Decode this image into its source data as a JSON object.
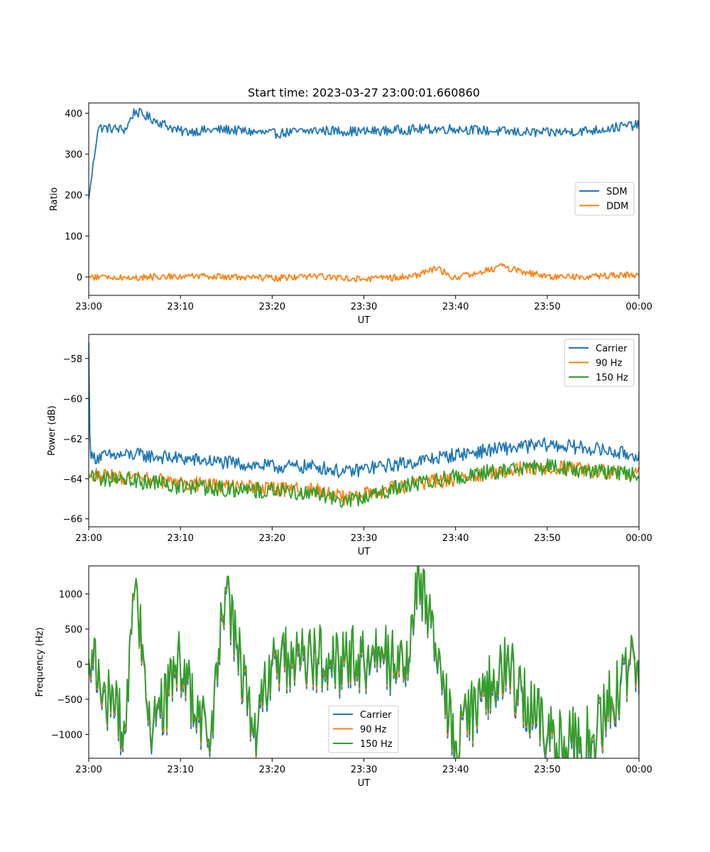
{
  "chart_data": [
    {
      "type": "line",
      "title": "Start time: 2023-03-27 23:00:01.660860",
      "xlabel": "UT",
      "ylabel": "Ratio",
      "xlim": [
        "23:00",
        "00:00"
      ],
      "ylim": [
        -45,
        425
      ],
      "xticks": [
        "23:00",
        "23:10",
        "23:20",
        "23:30",
        "23:40",
        "23:50",
        "00:00"
      ],
      "yticks": [
        0,
        100,
        200,
        300,
        400
      ],
      "legend_position": "center-right",
      "series": [
        {
          "name": "SDM",
          "color": "#1f77b4",
          "x": [
            "23:00",
            "23:01",
            "23:04",
            "23:05",
            "23:10",
            "23:15",
            "23:20",
            "23:25",
            "23:30",
            "23:35",
            "23:40",
            "23:45",
            "23:50",
            "23:55",
            "23:59"
          ],
          "values": [
            190,
            365,
            360,
            405,
            355,
            360,
            350,
            358,
            355,
            360,
            362,
            355,
            352,
            358,
            370
          ]
        },
        {
          "name": "DDM",
          "color": "#ff7f0e",
          "x": [
            "23:00",
            "23:05",
            "23:10",
            "23:15",
            "23:20",
            "23:25",
            "23:30",
            "23:35",
            "23:38",
            "23:40",
            "23:45",
            "23:50",
            "23:55",
            "23:59"
          ],
          "values": [
            0,
            -2,
            2,
            0,
            -3,
            2,
            -5,
            0,
            20,
            -2,
            25,
            0,
            2,
            5
          ]
        }
      ]
    },
    {
      "type": "line",
      "title": "",
      "xlabel": "UT",
      "ylabel": "Power (dB)",
      "xlim": [
        "23:00",
        "00:00"
      ],
      "ylim": [
        -66.4,
        -56.8
      ],
      "xticks": [
        "23:00",
        "23:10",
        "23:20",
        "23:30",
        "23:40",
        "23:50",
        "00:00"
      ],
      "yticks": [
        -66,
        -64,
        -62,
        -60,
        -58
      ],
      "legend_position": "top-right",
      "series": [
        {
          "name": "Carrier",
          "color": "#1f77b4",
          "x": [
            "23:00",
            "23:00",
            "23:01",
            "23:05",
            "23:10",
            "23:15",
            "23:20",
            "23:25",
            "23:28",
            "23:30",
            "23:35",
            "23:40",
            "23:45",
            "23:50",
            "23:55",
            "23:59"
          ],
          "values": [
            -57.2,
            -63.0,
            -62.9,
            -62.8,
            -63.0,
            -63.2,
            -63.4,
            -63.4,
            -63.7,
            -63.5,
            -63.2,
            -62.8,
            -62.5,
            -62.3,
            -62.5,
            -62.8
          ]
        },
        {
          "name": "90 Hz",
          "color": "#ff7f0e",
          "x": [
            "23:00",
            "23:05",
            "23:10",
            "23:15",
            "23:20",
            "23:25",
            "23:28",
            "23:30",
            "23:35",
            "23:40",
            "23:45",
            "23:50",
            "23:55",
            "23:59"
          ],
          "values": [
            -63.8,
            -64.0,
            -64.2,
            -64.4,
            -64.5,
            -64.6,
            -65.0,
            -64.8,
            -64.3,
            -64.0,
            -63.6,
            -63.4,
            -63.6,
            -63.8
          ]
        },
        {
          "name": "150 Hz",
          "color": "#2ca02c",
          "x": [
            "23:00",
            "23:05",
            "23:10",
            "23:15",
            "23:20",
            "23:25",
            "23:28",
            "23:30",
            "23:35",
            "23:40",
            "23:45",
            "23:50",
            "23:55",
            "23:59"
          ],
          "values": [
            -63.9,
            -64.1,
            -64.4,
            -64.5,
            -64.6,
            -64.7,
            -65.1,
            -64.9,
            -64.3,
            -63.9,
            -63.6,
            -63.4,
            -63.6,
            -63.8
          ]
        }
      ]
    },
    {
      "type": "line",
      "title": "",
      "xlabel": "UT",
      "ylabel": "Frequency (Hz)",
      "xlim": [
        "23:00",
        "00:00"
      ],
      "ylim": [
        -1340,
        1400
      ],
      "xticks": [
        "23:00",
        "23:10",
        "23:20",
        "23:30",
        "23:40",
        "23:50",
        "00:00"
      ],
      "yticks": [
        -1000,
        -500,
        0,
        500,
        1000
      ],
      "legend_position": "lower-center",
      "series": [
        {
          "name": "Carrier",
          "color": "#1f77b4",
          "x": [
            "23:00",
            "23:04",
            "23:05",
            "23:07",
            "23:10",
            "23:13",
            "23:15",
            "23:18",
            "23:20",
            "23:25",
            "23:30",
            "23:35",
            "23:36",
            "23:40",
            "23:45",
            "23:51",
            "23:55",
            "23:59"
          ],
          "values": [
            0,
            -1000,
            1100,
            -1100,
            0,
            -1200,
            1000,
            -1050,
            0,
            0,
            0,
            0,
            1300,
            -1200,
            0,
            -1200,
            -1100,
            0
          ]
        },
        {
          "name": "90 Hz",
          "color": "#ff7f0e",
          "x": [
            "23:00",
            "23:04",
            "23:05",
            "23:07",
            "23:10",
            "23:13",
            "23:15",
            "23:18",
            "23:20",
            "23:25",
            "23:30",
            "23:35",
            "23:36",
            "23:40",
            "23:45",
            "23:51",
            "23:55",
            "23:59"
          ],
          "values": [
            50,
            -950,
            1120,
            -1050,
            50,
            -1150,
            1050,
            -1000,
            50,
            50,
            50,
            50,
            1320,
            -1150,
            50,
            -1150,
            -1050,
            50
          ]
        },
        {
          "name": "150 Hz",
          "color": "#2ca02c",
          "x": [
            "23:00",
            "23:04",
            "23:05",
            "23:07",
            "23:10",
            "23:13",
            "23:15",
            "23:18",
            "23:20",
            "23:25",
            "23:30",
            "23:35",
            "23:36",
            "23:40",
            "23:45",
            "23:51",
            "23:55",
            "23:59"
          ],
          "values": [
            80,
            -920,
            1140,
            -1020,
            80,
            -1120,
            1080,
            -980,
            80,
            80,
            80,
            80,
            1330,
            -1120,
            80,
            -1120,
            -1020,
            80
          ]
        }
      ]
    }
  ]
}
